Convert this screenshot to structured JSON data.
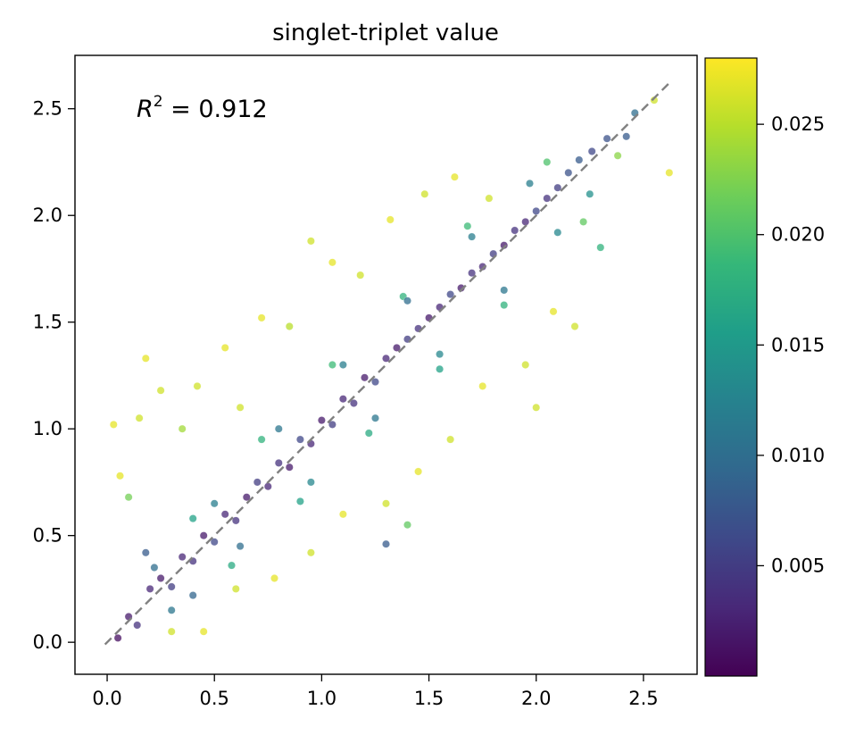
{
  "chart_data": {
    "type": "scatter",
    "title": "singlet-triplet value",
    "xlabel": "",
    "ylabel": "",
    "xlim": [
      -0.15,
      2.75
    ],
    "ylim": [
      -0.15,
      2.75
    ],
    "xticks": [
      0.0,
      0.5,
      1.0,
      1.5,
      2.0,
      2.5
    ],
    "yticks": [
      0.0,
      0.5,
      1.0,
      1.5,
      2.0,
      2.5
    ],
    "xtick_labels": [
      "0.0",
      "0.5",
      "1.0",
      "1.5",
      "2.0",
      "2.5"
    ],
    "ytick_labels": [
      "0.0",
      "0.5",
      "1.0",
      "1.5",
      "2.0",
      "2.5"
    ],
    "grid": false,
    "annotation": {
      "symbol": "R",
      "superscript": "2",
      "text": " = 0.912"
    },
    "reference_line": {
      "style": "dashed",
      "color": "#808080",
      "from": [
        -0.01,
        -0.01
      ],
      "to": [
        2.62,
        2.62
      ]
    },
    "colorbar": {
      "colormap": "viridis",
      "range": [
        0.0,
        0.028
      ],
      "ticks": [
        0.005,
        0.01,
        0.015,
        0.02,
        0.025
      ],
      "tick_labels": [
        "0.005",
        "0.010",
        "0.015",
        "0.020",
        "0.025"
      ],
      "colors": [
        "#440154",
        "#482878",
        "#3e4989",
        "#31688e",
        "#26828e",
        "#1f9e89",
        "#35b779",
        "#6ece58",
        "#b5de2b",
        "#fde725"
      ]
    },
    "series": [
      {
        "points": [
          [
            0.05,
            0.02,
            0.001
          ],
          [
            0.1,
            0.12,
            0.002
          ],
          [
            0.14,
            0.08,
            0.004
          ],
          [
            0.2,
            0.25,
            0.003
          ],
          [
            0.25,
            0.3,
            0.002
          ],
          [
            0.3,
            0.26,
            0.005
          ],
          [
            0.35,
            0.4,
            0.003
          ],
          [
            0.4,
            0.38,
            0.004
          ],
          [
            0.45,
            0.5,
            0.002
          ],
          [
            0.5,
            0.47,
            0.006
          ],
          [
            0.55,
            0.6,
            0.003
          ],
          [
            0.6,
            0.57,
            0.004
          ],
          [
            0.65,
            0.68,
            0.002
          ],
          [
            0.7,
            0.75,
            0.005
          ],
          [
            0.75,
            0.73,
            0.003
          ],
          [
            0.8,
            0.84,
            0.004
          ],
          [
            0.85,
            0.82,
            0.002
          ],
          [
            0.9,
            0.95,
            0.006
          ],
          [
            0.95,
            0.93,
            0.003
          ],
          [
            1.0,
            1.04,
            0.002
          ],
          [
            1.05,
            1.02,
            0.005
          ],
          [
            1.1,
            1.14,
            0.003
          ],
          [
            1.15,
            1.12,
            0.004
          ],
          [
            1.2,
            1.24,
            0.002
          ],
          [
            1.25,
            1.22,
            0.006
          ],
          [
            1.3,
            1.33,
            0.003
          ],
          [
            1.35,
            1.38,
            0.002
          ],
          [
            1.4,
            1.42,
            0.005
          ],
          [
            1.45,
            1.47,
            0.004
          ],
          [
            1.5,
            1.52,
            0.002
          ],
          [
            1.55,
            1.57,
            0.003
          ],
          [
            1.6,
            1.63,
            0.006
          ],
          [
            1.65,
            1.66,
            0.002
          ],
          [
            1.7,
            1.73,
            0.004
          ],
          [
            1.75,
            1.76,
            0.003
          ],
          [
            1.8,
            1.82,
            0.005
          ],
          [
            1.85,
            1.86,
            0.002
          ],
          [
            1.9,
            1.93,
            0.004
          ],
          [
            1.95,
            1.97,
            0.003
          ],
          [
            2.0,
            2.02,
            0.006
          ],
          [
            2.05,
            2.08,
            0.004
          ],
          [
            2.1,
            2.13,
            0.005
          ],
          [
            2.15,
            2.2,
            0.007
          ],
          [
            2.2,
            2.26,
            0.008
          ],
          [
            2.26,
            2.3,
            0.006
          ],
          [
            2.33,
            2.36,
            0.007
          ],
          [
            2.42,
            2.37,
            0.008
          ],
          [
            2.46,
            2.48,
            0.01
          ],
          [
            0.22,
            0.35,
            0.01
          ],
          [
            0.3,
            0.15,
            0.011
          ],
          [
            0.5,
            0.65,
            0.012
          ],
          [
            0.62,
            0.45,
            0.01
          ],
          [
            0.8,
            1.0,
            0.011
          ],
          [
            0.95,
            0.75,
            0.013
          ],
          [
            1.1,
            1.3,
            0.012
          ],
          [
            1.25,
            1.05,
            0.011
          ],
          [
            1.4,
            1.6,
            0.01
          ],
          [
            1.55,
            1.35,
            0.013
          ],
          [
            1.7,
            1.9,
            0.012
          ],
          [
            1.85,
            1.65,
            0.011
          ],
          [
            1.97,
            2.15,
            0.012
          ],
          [
            2.1,
            1.92,
            0.013
          ],
          [
            2.25,
            2.1,
            0.014
          ],
          [
            0.4,
            0.58,
            0.016
          ],
          [
            0.58,
            0.36,
            0.017
          ],
          [
            0.72,
            0.95,
            0.018
          ],
          [
            0.9,
            0.66,
            0.016
          ],
          [
            1.05,
            1.3,
            0.019
          ],
          [
            1.22,
            0.98,
            0.017
          ],
          [
            1.38,
            1.62,
            0.018
          ],
          [
            1.55,
            1.28,
            0.016
          ],
          [
            1.68,
            1.95,
            0.019
          ],
          [
            1.85,
            1.58,
            0.018
          ],
          [
            2.05,
            2.25,
            0.02
          ],
          [
            2.22,
            1.97,
            0.021
          ],
          [
            2.38,
            2.28,
            0.023
          ],
          [
            0.06,
            0.78,
            0.027
          ],
          [
            0.1,
            0.68,
            0.022
          ],
          [
            0.15,
            1.05,
            0.026
          ],
          [
            0.18,
            1.33,
            0.027
          ],
          [
            0.25,
            1.18,
            0.026
          ],
          [
            0.35,
            1.0,
            0.024
          ],
          [
            0.42,
            1.2,
            0.026
          ],
          [
            0.55,
            1.38,
            0.027
          ],
          [
            0.62,
            1.1,
            0.026
          ],
          [
            0.72,
            1.52,
            0.027
          ],
          [
            0.85,
            1.48,
            0.025
          ],
          [
            0.95,
            1.88,
            0.026
          ],
          [
            1.05,
            1.78,
            0.027
          ],
          [
            1.18,
            1.72,
            0.026
          ],
          [
            1.32,
            1.98,
            0.027
          ],
          [
            1.48,
            2.1,
            0.026
          ],
          [
            1.62,
            2.18,
            0.027
          ],
          [
            1.78,
            2.08,
            0.026
          ],
          [
            0.3,
            0.05,
            0.026
          ],
          [
            0.45,
            0.05,
            0.027
          ],
          [
            0.6,
            0.25,
            0.026
          ],
          [
            0.78,
            0.3,
            0.027
          ],
          [
            0.95,
            0.42,
            0.026
          ],
          [
            1.1,
            0.6,
            0.027
          ],
          [
            1.3,
            0.65,
            0.026
          ],
          [
            1.45,
            0.8,
            0.027
          ],
          [
            1.6,
            0.95,
            0.026
          ],
          [
            1.75,
            1.2,
            0.027
          ],
          [
            1.95,
            1.3,
            0.026
          ],
          [
            2.08,
            1.55,
            0.027
          ],
          [
            2.18,
            1.48,
            0.026
          ],
          [
            2.62,
            2.2,
            0.027
          ],
          [
            2.55,
            2.54,
            0.026
          ],
          [
            0.03,
            1.02,
            0.027
          ],
          [
            1.3,
            0.46,
            0.008
          ],
          [
            2.3,
            1.85,
            0.018
          ],
          [
            2.0,
            1.1,
            0.026
          ],
          [
            1.4,
            0.55,
            0.021
          ],
          [
            0.18,
            0.42,
            0.008
          ],
          [
            0.4,
            0.22,
            0.009
          ]
        ]
      }
    ]
  }
}
